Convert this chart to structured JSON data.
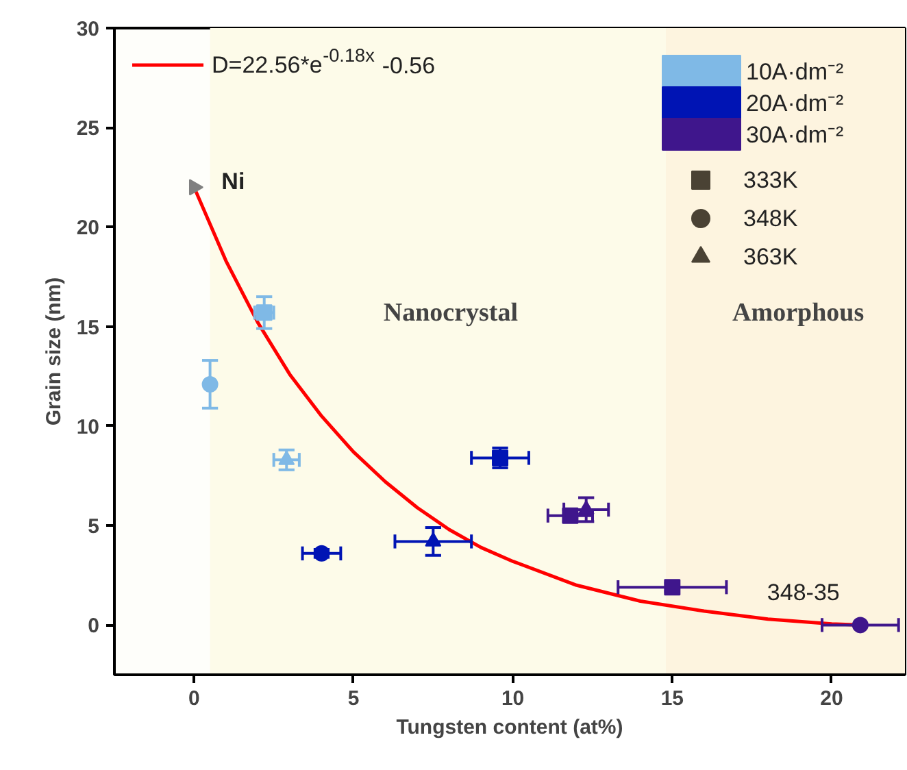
{
  "chart_data": {
    "type": "scatter",
    "xlabel": "Tungsten content (at%)",
    "ylabel": "Grain size (nm)",
    "xlim": [
      -2.5,
      22.3
    ],
    "ylim": [
      -2.5,
      30
    ],
    "xticks": [
      0,
      5,
      10,
      15,
      20
    ],
    "yticks": [
      0,
      5,
      10,
      15,
      20,
      25,
      30
    ],
    "grid": false,
    "legend": "top right",
    "bands": [
      {
        "axis": "x",
        "from": 0.5,
        "to": 14.8,
        "label": "Nanocrystal",
        "color": "#fdfbe9"
      },
      {
        "axis": "x",
        "from": 14.8,
        "to": 22.3,
        "label": "Amorphous",
        "color": "#fdf4df"
      }
    ],
    "annotations": [
      {
        "text": "Ni",
        "x": 0,
        "y": 22
      },
      {
        "text": "348-35",
        "x": 20.9,
        "y": 0
      }
    ],
    "series": [
      {
        "type": "line",
        "name": "D=22.56*e$^{-0.18x}$-0.56",
        "color": "#ff0000",
        "x": [
          0,
          1,
          2,
          3,
          4,
          5,
          6,
          7,
          8,
          9,
          10,
          12,
          14,
          16,
          18,
          20,
          21
        ],
        "values": [
          22.0,
          18.3,
          15.2,
          12.6,
          10.5,
          8.7,
          7.2,
          5.9,
          4.8,
          3.9,
          3.2,
          2.0,
          1.2,
          0.7,
          0.3,
          0.06,
          0.0
        ]
      },
      {
        "color": "#808080",
        "marker": "triangle",
        "x": [
          0
        ],
        "values": [
          22
        ]
      },
      {
        "name": "10A·dm⁻²",
        "color": "#7fb9e6",
        "marker": [
          "circle",
          "square",
          "triangle"
        ],
        "x": [
          0.5,
          2.2,
          2.9
        ],
        "values": [
          12.1,
          15.7,
          8.3
        ],
        "errors": [
          1.2,
          0.8,
          0.5
        ],
        "xerrors": [
          null,
          0.3,
          0.4
        ]
      },
      {
        "name": "20A·dm⁻²",
        "color": "#0014b4",
        "marker": [
          "circle",
          "triangle",
          "square"
        ],
        "x": [
          4.0,
          7.5,
          9.6
        ],
        "values": [
          3.6,
          4.2,
          8.4
        ],
        "errors": [
          0.2,
          0.7,
          0.5
        ],
        "xerrors": [
          0.6,
          1.2,
          0.9
        ]
      },
      {
        "name": "30A·dm⁻²",
        "color": "#3f168c",
        "marker": [
          "square",
          "triangle",
          "square",
          "circle"
        ],
        "x": [
          11.8,
          12.3,
          15.0,
          20.9
        ],
        "values": [
          5.5,
          5.8,
          1.9,
          0.0
        ],
        "errors": [
          0.3,
          0.6,
          0.2,
          null
        ],
        "xerrors": [
          0.7,
          0.7,
          1.7,
          1.2
        ]
      },
      {
        "name": "333K",
        "color": "#4a4234",
        "marker": "square"
      },
      {
        "name": "348K",
        "color": "#4a4234",
        "marker": "circle"
      },
      {
        "name": "363K",
        "color": "#4a4234",
        "marker": "triangle"
      }
    ]
  }
}
